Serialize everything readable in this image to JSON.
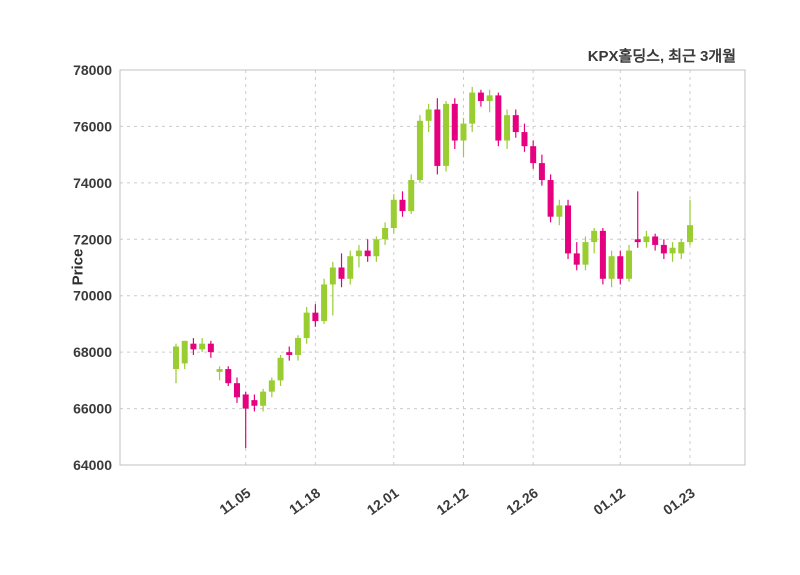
{
  "chart_data": {
    "type": "candlestick",
    "title": "KPX홀딩스, 최근 3개월",
    "ylabel": "Price",
    "ylim": [
      64000,
      78000
    ],
    "y_ticks": [
      64000,
      66000,
      68000,
      70000,
      72000,
      74000,
      76000,
      78000
    ],
    "x_tick_labels": [
      "11.05",
      "11.18",
      "12.01",
      "12.12",
      "12.26",
      "01.12",
      "01.23"
    ],
    "x_tick_indices": [
      8,
      16,
      25,
      33,
      41,
      51,
      59
    ],
    "up_color": "#9ACD32",
    "down_color": "#E4007F",
    "grid_color": "#cccccc",
    "grid_style": "dashed",
    "border_color": "#c0c0c0",
    "legend_position": "none",
    "candles": [
      [
        67400,
        68300,
        66900,
        68200
      ],
      [
        67600,
        68400,
        67400,
        68400
      ],
      [
        68300,
        68500,
        67900,
        68100
      ],
      [
        68100,
        68500,
        68000,
        68300
      ],
      [
        68300,
        68400,
        67800,
        68000
      ],
      [
        67300,
        67500,
        67000,
        67400
      ],
      [
        67400,
        67500,
        66800,
        66900
      ],
      [
        66900,
        67100,
        66200,
        66400
      ],
      [
        66500,
        66600,
        64600,
        66000
      ],
      [
        66300,
        66500,
        65900,
        66100
      ],
      [
        66100,
        66700,
        65900,
        66600
      ],
      [
        66600,
        67100,
        66400,
        67000
      ],
      [
        67000,
        67900,
        66800,
        67800
      ],
      [
        68000,
        68200,
        67700,
        67900
      ],
      [
        67900,
        68600,
        67700,
        68500
      ],
      [
        68500,
        69600,
        68300,
        69400
      ],
      [
        69400,
        69700,
        68900,
        69100
      ],
      [
        69100,
        70600,
        69000,
        70400
      ],
      [
        70400,
        71200,
        69300,
        71000
      ],
      [
        71000,
        71500,
        70300,
        70600
      ],
      [
        70600,
        71600,
        70400,
        71400
      ],
      [
        71400,
        71800,
        71000,
        71600
      ],
      [
        71600,
        72000,
        71200,
        71400
      ],
      [
        71400,
        72100,
        71200,
        72000
      ],
      [
        72000,
        72600,
        71800,
        72400
      ],
      [
        72400,
        73600,
        72200,
        73400
      ],
      [
        73400,
        73700,
        72800,
        73000
      ],
      [
        73000,
        74300,
        72900,
        74100
      ],
      [
        74100,
        76400,
        74000,
        76200
      ],
      [
        76200,
        76800,
        75800,
        76600
      ],
      [
        76600,
        77000,
        74300,
        74600
      ],
      [
        74600,
        76900,
        74400,
        76800
      ],
      [
        76800,
        77000,
        75200,
        75500
      ],
      [
        75500,
        76300,
        74900,
        76100
      ],
      [
        76100,
        77400,
        75800,
        77200
      ],
      [
        77200,
        77300,
        76700,
        76900
      ],
      [
        76900,
        77300,
        76500,
        77100
      ],
      [
        77100,
        77200,
        75300,
        75500
      ],
      [
        75500,
        76600,
        75200,
        76400
      ],
      [
        76400,
        76600,
        75600,
        75800
      ],
      [
        75800,
        76100,
        75100,
        75300
      ],
      [
        75300,
        75500,
        74500,
        74700
      ],
      [
        74700,
        75000,
        73900,
        74100
      ],
      [
        74100,
        74300,
        72600,
        72800
      ],
      [
        72800,
        73400,
        72500,
        73200
      ],
      [
        73200,
        73400,
        71300,
        71500
      ],
      [
        71500,
        71900,
        70900,
        71100
      ],
      [
        71100,
        72100,
        70900,
        71900
      ],
      [
        71900,
        72400,
        71500,
        72300
      ],
      [
        72300,
        72400,
        70400,
        70600
      ],
      [
        70600,
        71600,
        70300,
        71400
      ],
      [
        71400,
        71600,
        70400,
        70600
      ],
      [
        70600,
        71800,
        70500,
        71600
      ],
      [
        72000,
        73700,
        71700,
        71900
      ],
      [
        71900,
        72300,
        71700,
        72100
      ],
      [
        72100,
        72200,
        71600,
        71800
      ],
      [
        71800,
        72000,
        71300,
        71500
      ],
      [
        71500,
        71900,
        71200,
        71700
      ],
      [
        71500,
        72000,
        71300,
        71900
      ],
      [
        71900,
        73400,
        71800,
        72500
      ]
    ]
  }
}
